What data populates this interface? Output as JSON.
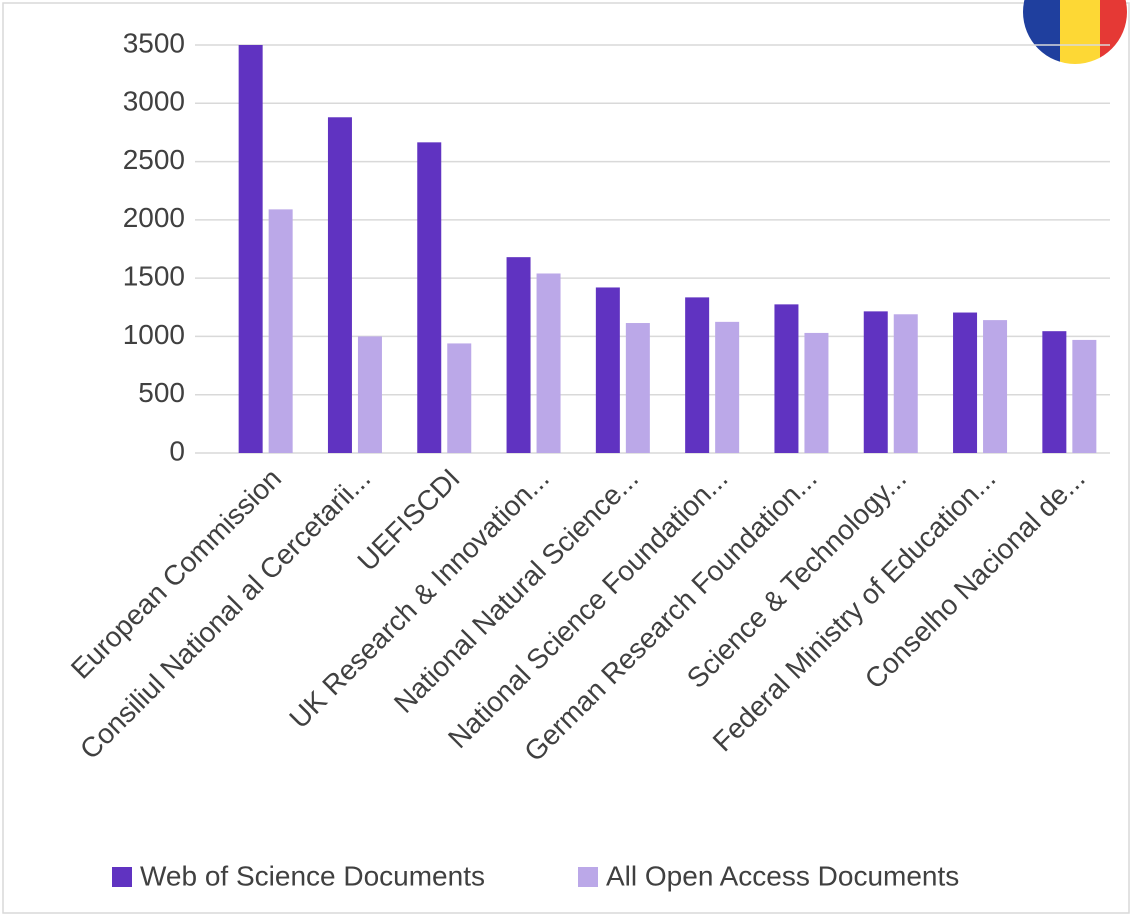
{
  "chart_data": {
    "type": "bar",
    "categories": [
      "European Commission",
      "Consiliul National al Cercetarii...",
      "UEFISCDI",
      "UK Research & Innovation...",
      "National Natural Science...",
      "National Science Foundation...",
      "German Research Foundation...",
      "Science & Technology...",
      "Federal Ministry of Education...",
      "Conselho Nacional de..."
    ],
    "series": [
      {
        "name": "Web of Science Documents",
        "color": "#6033c1",
        "values": [
          3500,
          2880,
          2665,
          1680,
          1420,
          1335,
          1275,
          1215,
          1205,
          1045
        ]
      },
      {
        "name": "All Open Access Documents",
        "color": "#bba8e8",
        "values": [
          2090,
          1000,
          940,
          1540,
          1115,
          1125,
          1030,
          1190,
          1140,
          970
        ]
      }
    ],
    "ylim": [
      0,
      3500
    ],
    "yticks": [
      0,
      500,
      1000,
      1500,
      2000,
      2500,
      3000,
      3500
    ],
    "grid": true,
    "legend": "bottom"
  }
}
